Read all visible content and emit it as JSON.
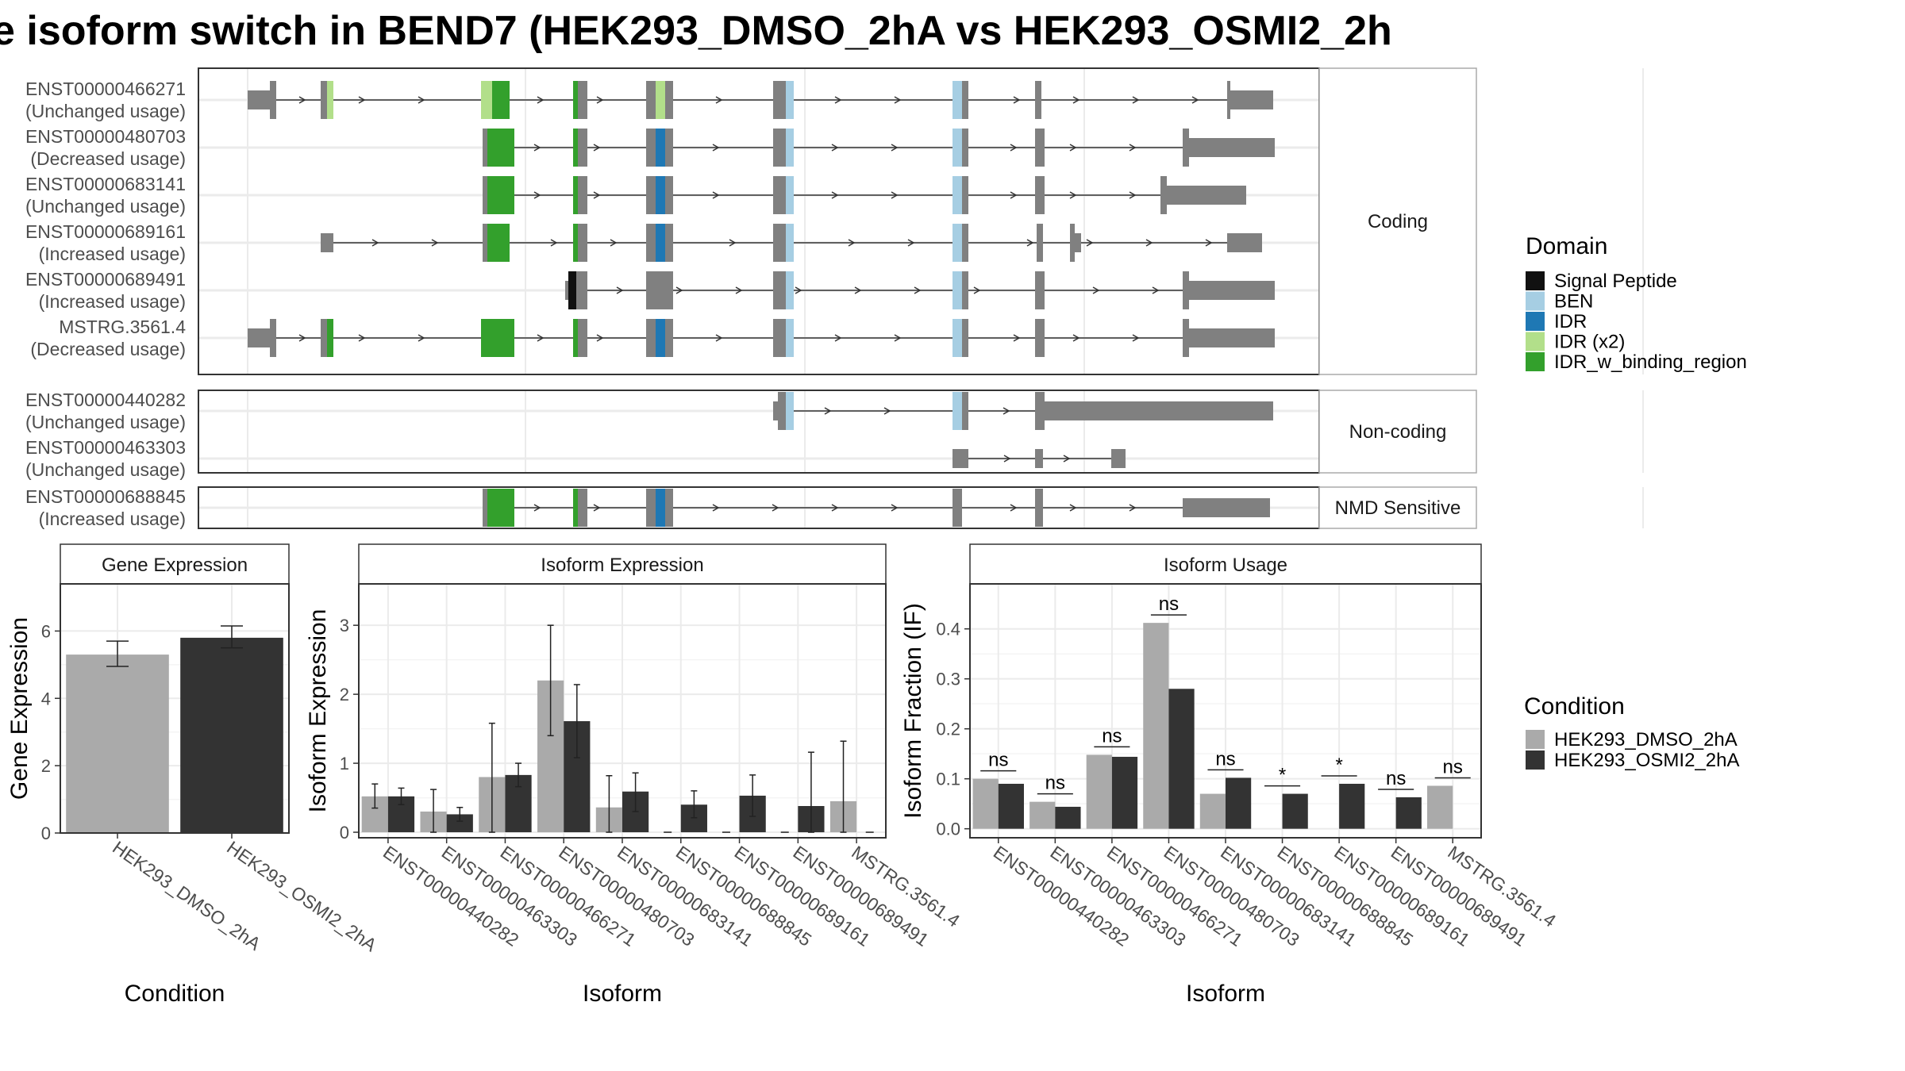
{
  "title": "e isoform switch in BEND7 (HEK293_DMSO_2hA vs HEK293_OSMI2_2h",
  "colors": {
    "signal_peptide": "#111111",
    "ben": "#a6cee3",
    "idr": "#1f78b4",
    "idr_x2": "#b2df8a",
    "idr_w_binding_region": "#33a02c",
    "exon": "#808080",
    "dmso": "#aaaaaa",
    "osmi": "#333333",
    "strip_bg": "#ffffff",
    "grid": "#ebebeb"
  },
  "structure": {
    "panels": [
      {
        "strip": "Coding",
        "transcripts": [
          {
            "id": "ENST00000466271",
            "usage": "(Unchanged usage)"
          },
          {
            "id": "ENST00000480703",
            "usage": "(Decreased usage)"
          },
          {
            "id": "ENST00000683141",
            "usage": "(Unchanged usage)"
          },
          {
            "id": "ENST00000689161",
            "usage": "(Increased usage)"
          },
          {
            "id": "ENST00000689491",
            "usage": "(Increased usage)"
          },
          {
            "id": "MSTRG.3561.4",
            "usage": "(Decreased usage)"
          }
        ]
      },
      {
        "strip": "Non-coding",
        "transcripts": [
          {
            "id": "ENST00000440282",
            "usage": "(Unchanged usage)"
          },
          {
            "id": "ENST00000463303",
            "usage": "(Unchanged usage)"
          }
        ]
      },
      {
        "strip": "NMD Sensitive",
        "transcripts": [
          {
            "id": "ENST00000688845",
            "usage": "(Increased usage)"
          }
        ]
      }
    ],
    "domain_legend": {
      "title": "Domain",
      "items": [
        {
          "label": "Signal Peptide",
          "color": "#111111"
        },
        {
          "label": "BEN",
          "color": "#a6cee3"
        },
        {
          "label": "IDR",
          "color": "#1f78b4"
        },
        {
          "label": "IDR (x2)",
          "color": "#b2df8a"
        },
        {
          "label": "IDR_w_binding_region",
          "color": "#33a02c"
        }
      ]
    }
  },
  "chart_data": [
    {
      "type": "bar",
      "title": "Gene Expression",
      "xlabel": "Condition",
      "ylabel": "Gene Expression",
      "categories": [
        "HEK293_DMSO_2hA",
        "HEK293_OSMI2_2hA"
      ],
      "values": [
        5.3,
        5.8
      ],
      "errors": [
        [
          4.95,
          5.7
        ],
        [
          5.5,
          6.15
        ]
      ],
      "ylim": [
        0,
        7.4
      ],
      "yticks": [
        0,
        2,
        4,
        6
      ]
    },
    {
      "type": "bar",
      "title": "Isoform Expression",
      "xlabel": "Isoform",
      "ylabel": "Isoform Expression",
      "categories": [
        "ENST00000440282",
        "ENST00000463303",
        "ENST00000466271",
        "ENST00000480703",
        "ENST00000683141",
        "ENST00000688845",
        "ENST00000689161",
        "ENST00000689491",
        "MSTRG.3561.4"
      ],
      "series": [
        {
          "name": "HEK293_DMSO_2hA",
          "values": [
            0.52,
            0.3,
            0.8,
            2.2,
            0.36,
            0.0,
            0.0,
            0.0,
            0.45
          ],
          "errors": [
            [
              0.35,
              0.7
            ],
            [
              0,
              0.62
            ],
            [
              0,
              1.58
            ],
            [
              1.4,
              3.0
            ],
            [
              0,
              0.82
            ],
            null,
            null,
            null,
            [
              0,
              1.32
            ]
          ]
        },
        {
          "name": "HEK293_OSMI2_2hA",
          "values": [
            0.52,
            0.26,
            0.83,
            1.61,
            0.59,
            0.4,
            0.53,
            0.38,
            0.0
          ],
          "errors": [
            [
              0.4,
              0.64
            ],
            [
              0.16,
              0.36
            ],
            [
              0.66,
              1.0
            ],
            [
              1.08,
              2.14
            ],
            [
              0.3,
              0.86
            ],
            [
              0.21,
              0.6
            ],
            [
              0.23,
              0.83
            ],
            [
              0,
              1.16
            ],
            null
          ]
        }
      ],
      "ylim": [
        -0.08,
        3.6
      ],
      "yticks": [
        0,
        1,
        2,
        3
      ]
    },
    {
      "type": "bar",
      "title": "Isoform Usage",
      "xlabel": "Isoform",
      "ylabel": "Isoform Fraction (IF)",
      "categories": [
        "ENST00000440282",
        "ENST00000463303",
        "ENST00000466271",
        "ENST00000480703",
        "ENST00000683141",
        "ENST00000688845",
        "ENST00000689161",
        "ENST00000689491",
        "MSTRG.3561.4"
      ],
      "series": [
        {
          "name": "HEK293_DMSO_2hA",
          "values": [
            0.1,
            0.054,
            0.148,
            0.412,
            0.07,
            0.0,
            0.0,
            0.0,
            0.086
          ]
        },
        {
          "name": "HEK293_OSMI2_2hA",
          "values": [
            0.09,
            0.044,
            0.144,
            0.28,
            0.102,
            0.07,
            0.09,
            0.063,
            0.0
          ]
        }
      ],
      "significance": [
        "ns",
        "ns",
        "ns",
        "ns",
        "ns",
        "*",
        "*",
        "ns",
        "ns"
      ],
      "ylim": [
        -0.018,
        0.49
      ],
      "yticks": [
        0.0,
        0.1,
        0.2,
        0.3,
        0.4
      ],
      "ytick_labels": [
        "0.0",
        "0.1",
        "0.2",
        "0.3",
        "0.4"
      ]
    }
  ],
  "condition_legend": {
    "title": "Condition",
    "items": [
      {
        "label": "HEK293_DMSO_2hA",
        "color": "#aaaaaa"
      },
      {
        "label": "HEK293_OSMI2_2hA",
        "color": "#333333"
      }
    ]
  }
}
